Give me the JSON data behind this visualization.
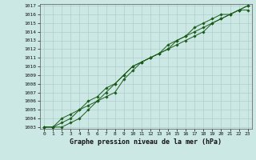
{
  "title": "Graphe pression niveau de la mer (hPa)",
  "xlabel": "Graphe pression niveau de la mer (hPa)",
  "x": [
    0,
    1,
    2,
    3,
    4,
    5,
    6,
    7,
    8,
    9,
    10,
    11,
    12,
    13,
    14,
    15,
    16,
    17,
    18,
    19,
    20,
    21,
    22,
    23
  ],
  "line1": [
    1003,
    1003,
    1003,
    1003.5,
    1004,
    1005,
    1006,
    1006.5,
    1007,
    1008.5,
    1009.5,
    1010.5,
    1011,
    1011.5,
    1012,
    1012.5,
    1013,
    1013.5,
    1014,
    1015,
    1015.5,
    1016,
    1016.5,
    1017
  ],
  "line2": [
    1003,
    1003,
    1003.5,
    1004,
    1005,
    1006,
    1006.5,
    1007.5,
    1008,
    1009,
    1010,
    1010.5,
    1011,
    1011.5,
    1012,
    1013,
    1013.5,
    1014,
    1014.5,
    1015,
    1015.5,
    1016,
    1016.5,
    1017
  ],
  "line3": [
    1003,
    1003,
    1004,
    1004.5,
    1005,
    1005.5,
    1006,
    1007,
    1008,
    1009,
    1010,
    1010.5,
    1011,
    1011.5,
    1012.5,
    1013,
    1013.5,
    1014.5,
    1015,
    1015.5,
    1016,
    1016,
    1016.5,
    1016.5
  ],
  "ylim": [
    1003,
    1017
  ],
  "xlim": [
    0,
    23
  ],
  "bg_color": "#cce8e4",
  "grid_color": "#b0cccc",
  "line_color": "#1a5c1a",
  "marker": "D",
  "markersize": 1.8,
  "linewidth": 0.7,
  "tick_fontsize": 4.5,
  "label_fontsize": 6.0,
  "yticks": [
    1003,
    1004,
    1005,
    1006,
    1007,
    1008,
    1009,
    1010,
    1011,
    1012,
    1013,
    1014,
    1015,
    1016,
    1017
  ],
  "xticks": [
    0,
    1,
    2,
    3,
    4,
    5,
    6,
    7,
    8,
    9,
    10,
    11,
    12,
    13,
    14,
    15,
    16,
    17,
    18,
    19,
    20,
    21,
    22,
    23
  ]
}
